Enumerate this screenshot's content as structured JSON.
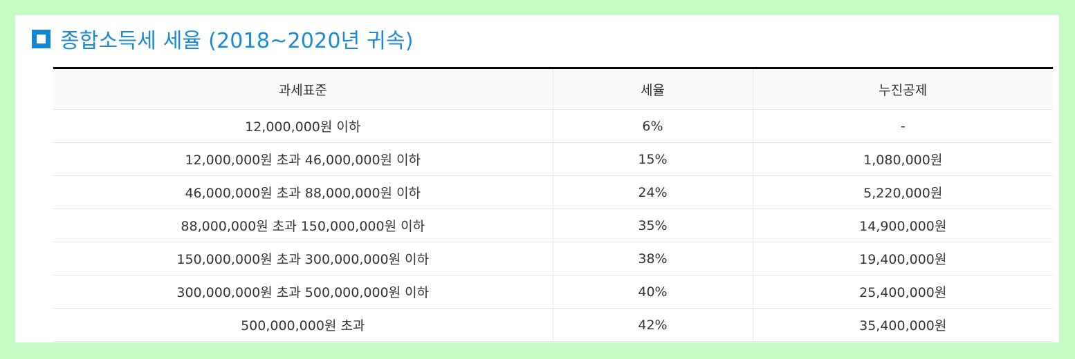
{
  "title": "종합소득세 세율 (2018~2020년 귀속)",
  "table": {
    "headers": [
      "과세표준",
      "세율",
      "누진공제"
    ],
    "rows": [
      [
        "12,000,000원 이하",
        "6%",
        "-"
      ],
      [
        "12,000,000원 초과 46,000,000원 이하",
        "15%",
        "1,080,000원"
      ],
      [
        "46,000,000원 초과 88,000,000원 이하",
        "24%",
        "5,220,000원"
      ],
      [
        "88,000,000원 초과 150,000,000원 이하",
        "35%",
        "14,900,000원"
      ],
      [
        "150,000,000원 초과 300,000,000원 이하",
        "38%",
        "19,400,000원"
      ],
      [
        "300,000,000원 초과 500,000,000원 이하",
        "40%",
        "25,400,000원"
      ],
      [
        "500,000,000원 초과",
        "42%",
        "35,400,000원"
      ]
    ]
  },
  "colors": {
    "accent": "#1a8ad6",
    "background": "#c4fcc4",
    "header_bg": "#fafafd",
    "table_top_border": "#000000"
  }
}
